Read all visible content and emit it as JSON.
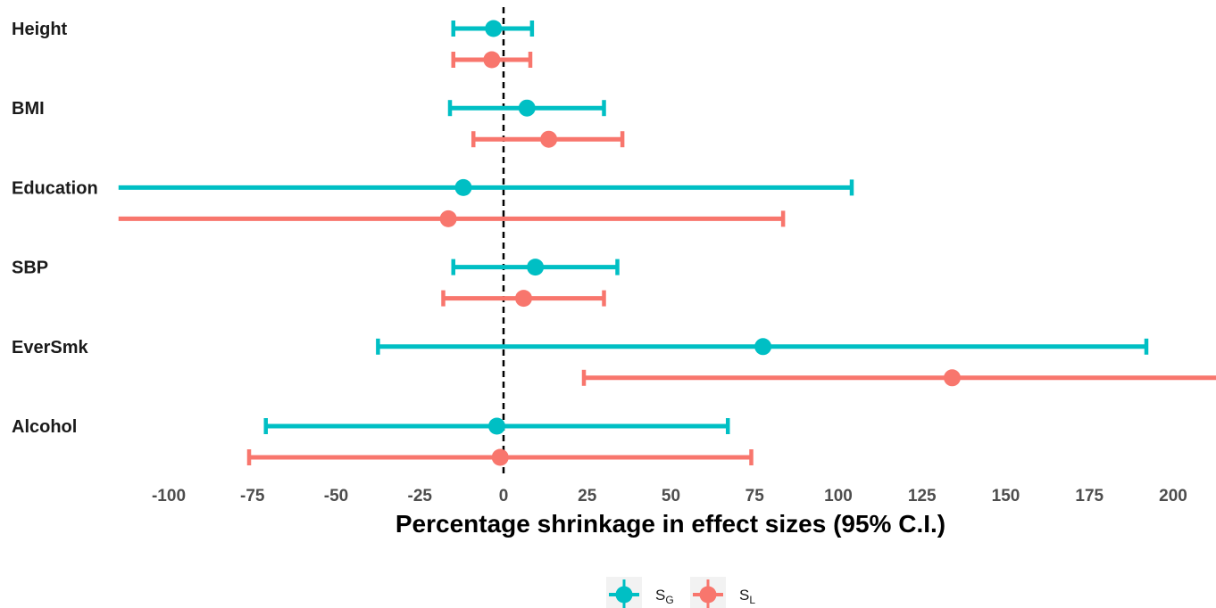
{
  "chart_data": {
    "type": "forest",
    "title": "",
    "xlabel": "Percentage shrinkage in effect sizes (95% C.I.)",
    "ylabel": "",
    "xlim": [
      -115,
      213
    ],
    "xticks": [
      -100,
      -75,
      -50,
      -25,
      0,
      25,
      50,
      75,
      100,
      125,
      150,
      175,
      200
    ],
    "xtick_labels": [
      "-100",
      "-75",
      "-50",
      "-25",
      "0",
      "25",
      "50",
      "75",
      "100",
      "125",
      "150",
      "175",
      "200"
    ],
    "reference_line": 0,
    "grid": false,
    "legend_position": "bottom",
    "categories": [
      "Height",
      "BMI",
      "Education",
      "SBP",
      "EverSmk",
      "Alcohol"
    ],
    "series": [
      {
        "key": "sg",
        "name_main": "S",
        "name_sub": "G",
        "color": "#00BFC4",
        "estimates": [
          -3,
          7,
          -12,
          9.5,
          77.5,
          -2
        ],
        "lower": [
          -15,
          -16,
          -115,
          -15,
          -37.5,
          -71
        ],
        "upper": [
          8.5,
          30,
          104,
          34,
          192,
          67
        ]
      },
      {
        "key": "sl",
        "name_main": "S",
        "name_sub": "L",
        "color": "#F8766D",
        "estimates": [
          -3.5,
          13.5,
          -16.5,
          6,
          134,
          -1
        ],
        "lower": [
          -15,
          -9,
          -115,
          -18,
          24,
          -76
        ],
        "upper": [
          8,
          35.5,
          83.5,
          30,
          213,
          74
        ]
      }
    ]
  }
}
